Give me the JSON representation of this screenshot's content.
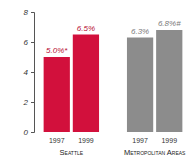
{
  "chart_data": {
    "type": "bar",
    "categories": [
      "1997",
      "1999",
      "1997",
      "1999"
    ],
    "group_labels": [
      "Seattle",
      "Metropolitan Areas"
    ],
    "values": [
      5.0,
      6.5,
      6.3,
      6.8
    ],
    "value_labels": [
      "5.0%*",
      "6.5%",
      "6.3%",
      "6.8%#"
    ],
    "colors": [
      "#d2103c",
      "#d2103c",
      "#8c8c8c",
      "#8c8c8c"
    ],
    "ylim": [
      0,
      8
    ],
    "yticks": [
      0,
      2,
      4,
      6,
      8
    ],
    "data_labels": true,
    "grid": false
  }
}
